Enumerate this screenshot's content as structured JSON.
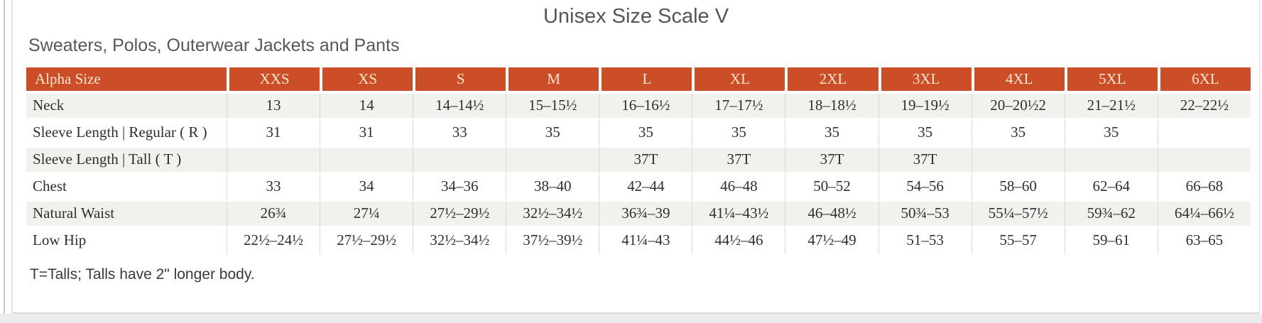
{
  "page": {
    "title": "Unisex Size Scale V",
    "subtitle": "Sweaters, Polos, Outerwear Jackets and Pants",
    "footnote": "T=Talls; Talls have 2\" longer body."
  },
  "colors": {
    "header_bg": "#cc4e26",
    "header_text": "#f7e6d3",
    "stripe": "#f2f1ee",
    "grid_line": "#d8d6d2"
  },
  "table": {
    "columns": [
      "Alpha Size",
      "XXS",
      "XS",
      "S",
      "M",
      "L",
      "XL",
      "2XL",
      "3XL",
      "4XL",
      "5XL",
      "6XL"
    ],
    "rows": [
      {
        "label": "Neck",
        "values": [
          "13",
          "14",
          "14–14½",
          "15–15½",
          "16–16½",
          "17–17½",
          "18–18½",
          "19–19½",
          "20–20½2",
          "21–21½",
          "22–22½"
        ]
      },
      {
        "label": "Sleeve Length | Regular ( R )",
        "values": [
          "31",
          "31",
          "33",
          "35",
          "35",
          "35",
          "35",
          "35",
          "35",
          "35",
          ""
        ]
      },
      {
        "label": "Sleeve Length | Tall ( T )",
        "values": [
          "",
          "",
          "",
          "",
          "37T",
          "37T",
          "37T",
          "37T",
          "",
          "",
          ""
        ]
      },
      {
        "label": "Chest",
        "values": [
          "33",
          "34",
          "34–36",
          "38–40",
          "42–44",
          "46–48",
          "50–52",
          "54–56",
          "58–60",
          "62–64",
          "66–68"
        ]
      },
      {
        "label": "Natural Waist",
        "values": [
          "26¾",
          "27¼",
          "27½–29½",
          "32½–34½",
          "36¾–39",
          "41¼–43½",
          "46–48½",
          "50¾–53",
          "55¼–57½",
          "59¾–62",
          "64¼–66½"
        ]
      },
      {
        "label": "Low Hip",
        "values": [
          "22½–24½",
          "27½–29½",
          "32½–34½",
          "37½–39½",
          "41¼–43",
          "44½–46",
          "47½–49",
          "51–53",
          "55–57",
          "59–61",
          "63–65"
        ]
      }
    ]
  }
}
